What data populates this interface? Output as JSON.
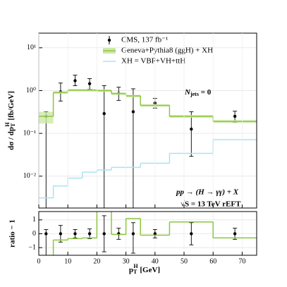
{
  "chart_data": [
    {
      "type": "histogram",
      "log_y": true,
      "grid": true,
      "legend": "top-right",
      "bins": [
        0,
        5,
        10,
        15,
        20,
        25,
        30,
        35,
        45,
        60,
        75
      ],
      "x": [
        2.5,
        7.5,
        12.5,
        17.5,
        22.5,
        27.5,
        32.5,
        40,
        52.5,
        67.5
      ],
      "xlim": [
        0,
        75
      ],
      "ylim": [
        0.0018,
        22
      ],
      "yticks": [
        {
          "value": 0.01,
          "label": "10⁻²"
        },
        {
          "value": 0.1,
          "label": "10⁻¹"
        },
        {
          "value": 1,
          "label": "10⁰"
        },
        {
          "value": 10,
          "label": "10¹"
        }
      ],
      "y_label": {
        "main": "dσ / dp",
        "sub": "T",
        "sup": "H",
        "unit": " [fb/GeV]"
      },
      "annotations": {
        "njets": "N",
        "njets_sub": "jets",
        "njets_rest": " = 0",
        "process": "pp → (H → γγ) + X",
        "energy": "√S = 13 TeV   rEFT"
      },
      "series": [
        {
          "name": "CMS, 137 fb⁻¹",
          "color": "#000000",
          "kind": "points",
          "values": [
            0.25,
            0.93,
            1.7,
            1.45,
            0.29,
            0.86,
            0.32,
            0.51,
            0.126,
            0.25
          ],
          "low": [
            0,
            0.57,
            1.3,
            1.08,
            0,
            0.59,
            0,
            0.39,
            0.029,
            0.18
          ],
          "high": [
            0.32,
            1.5,
            2.3,
            1.9,
            1.3,
            1.2,
            1.1,
            0.66,
            0.32,
            0.33
          ]
        },
        {
          "name": "Geneva+Pythia8 (ggH) + XH",
          "color": "#8dc63f",
          "band_color": "#cde8a8",
          "kind": "step",
          "values": [
            0.25,
            0.9,
            1.02,
            1.02,
            1.0,
            0.85,
            0.75,
            0.45,
            0.25,
            0.19
          ],
          "band_low": [
            0.17,
            0.84,
            0.95,
            0.95,
            0.93,
            0.79,
            0.7,
            0.42,
            0.23,
            0.175
          ],
          "band_high": [
            0.32,
            0.96,
            1.09,
            1.09,
            1.07,
            0.91,
            0.8,
            0.48,
            0.27,
            0.205
          ]
        },
        {
          "name": "XH = VBF+VH+ttH",
          "color": "#a8e4f0",
          "kind": "step",
          "values": [
            0.0031,
            0.0059,
            0.009,
            0.0124,
            0.014,
            0.016,
            0.016,
            0.02,
            0.034,
            0.071
          ]
        }
      ]
    },
    {
      "type": "histogram",
      "grid": true,
      "bins": [
        0,
        5,
        10,
        15,
        20,
        25,
        30,
        35,
        45,
        60,
        75
      ],
      "x": [
        2.5,
        7.5,
        12.5,
        17.5,
        22.5,
        27.5,
        32.5,
        40,
        52.5,
        67.5
      ],
      "xlim": [
        0,
        75
      ],
      "xticks": [
        0,
        10,
        20,
        30,
        40,
        50,
        60,
        70
      ],
      "ylim": [
        -1.55,
        1.6
      ],
      "yticks": [
        {
          "value": -1,
          "label": "−1"
        },
        0,
        1
      ],
      "y_label": "ratio − 1",
      "x_label": {
        "main": "p",
        "sub": "T",
        "sup": "H",
        "unit": "   [GeV]"
      },
      "series": [
        {
          "name": "CMS, 137 fb⁻¹",
          "color": "#000000",
          "kind": "points",
          "values": [
            0,
            0,
            0,
            0,
            0,
            0,
            0,
            0,
            0,
            0
          ],
          "low": [
            -2,
            -0.6,
            -0.3,
            -0.35,
            -1.3,
            -0.4,
            -1.4,
            -0.3,
            -0.8,
            -0.4
          ],
          "high": [
            0.3,
            0.6,
            0.3,
            0.35,
            1.3,
            0.4,
            0.8,
            0.3,
            0.8,
            0.4
          ]
        },
        {
          "name": "Geneva+Pythia8 (ggH) + XH",
          "color": "#8dc63f",
          "kind": "step",
          "values": [
            -2,
            -0.45,
            -0.35,
            -0.3,
            2.5,
            -0.05,
            1.1,
            -0.1,
            0.85,
            -0.3
          ]
        }
      ]
    }
  ]
}
